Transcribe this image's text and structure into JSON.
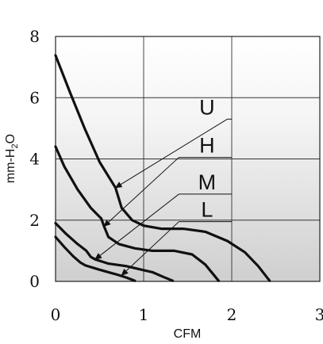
{
  "chart_data": {
    "type": "line",
    "xlabel": "CFM",
    "ylabel": {
      "prefix": "mm-H",
      "subscript": "2",
      "suffix": "O"
    },
    "xlim": [
      0,
      3
    ],
    "ylim": [
      0,
      8
    ],
    "xticks": [
      "0",
      "1",
      "2",
      "3"
    ],
    "yticks": [
      "0",
      "2",
      "4",
      "6",
      "8"
    ],
    "grid": true,
    "background": "gradient-grey-bottom",
    "series": [
      {
        "name": "U",
        "points": [
          [
            0.0,
            7.38
          ],
          [
            0.16,
            6.2
          ],
          [
            0.33,
            5.0
          ],
          [
            0.5,
            3.9
          ],
          [
            0.68,
            3.06
          ],
          [
            0.75,
            2.4
          ],
          [
            0.87,
            2.0
          ],
          [
            1.0,
            1.82
          ],
          [
            1.2,
            1.72
          ],
          [
            1.45,
            1.72
          ],
          [
            1.7,
            1.62
          ],
          [
            1.95,
            1.32
          ],
          [
            2.15,
            0.95
          ],
          [
            2.3,
            0.5
          ],
          [
            2.43,
            0.02
          ]
        ]
      },
      {
        "name": "H",
        "points": [
          [
            0.0,
            4.4
          ],
          [
            0.1,
            3.75
          ],
          [
            0.25,
            3.0
          ],
          [
            0.4,
            2.4
          ],
          [
            0.52,
            2.05
          ],
          [
            0.55,
            1.8
          ],
          [
            0.6,
            1.45
          ],
          [
            0.72,
            1.22
          ],
          [
            0.9,
            1.08
          ],
          [
            1.1,
            1.0
          ],
          [
            1.35,
            1.0
          ],
          [
            1.55,
            0.88
          ],
          [
            1.7,
            0.55
          ],
          [
            1.85,
            0.02
          ]
        ]
      },
      {
        "name": "M",
        "points": [
          [
            0.0,
            1.9
          ],
          [
            0.12,
            1.55
          ],
          [
            0.25,
            1.22
          ],
          [
            0.35,
            1.0
          ],
          [
            0.4,
            0.8
          ],
          [
            0.45,
            0.72
          ],
          [
            0.6,
            0.58
          ],
          [
            0.8,
            0.5
          ],
          [
            0.95,
            0.4
          ],
          [
            1.1,
            0.3
          ],
          [
            1.22,
            0.15
          ],
          [
            1.33,
            0.02
          ]
        ]
      },
      {
        "name": "L",
        "points": [
          [
            0.0,
            1.45
          ],
          [
            0.1,
            1.12
          ],
          [
            0.2,
            0.82
          ],
          [
            0.28,
            0.62
          ],
          [
            0.34,
            0.52
          ],
          [
            0.5,
            0.38
          ],
          [
            0.6,
            0.3
          ],
          [
            0.7,
            0.22
          ],
          [
            0.8,
            0.13
          ],
          [
            0.9,
            0.02
          ]
        ]
      }
    ],
    "callouts": [
      {
        "label": "U",
        "label_at": [
          2.0,
          5.3
        ],
        "elbow": [
          1.95,
          5.3
        ],
        "tip": [
          0.68,
          3.06
        ]
      },
      {
        "label": "H",
        "label_at": [
          2.0,
          4.05
        ],
        "elbow": [
          1.4,
          4.05
        ],
        "tip": [
          0.55,
          1.8
        ]
      },
      {
        "label": "M",
        "label_at": [
          2.0,
          2.85
        ],
        "elbow": [
          1.4,
          2.85
        ],
        "tip": [
          0.45,
          0.72
        ]
      },
      {
        "label": "L",
        "label_at": [
          2.0,
          1.95
        ],
        "elbow": [
          1.4,
          1.95
        ],
        "tip": [
          0.75,
          0.2
        ]
      }
    ]
  }
}
